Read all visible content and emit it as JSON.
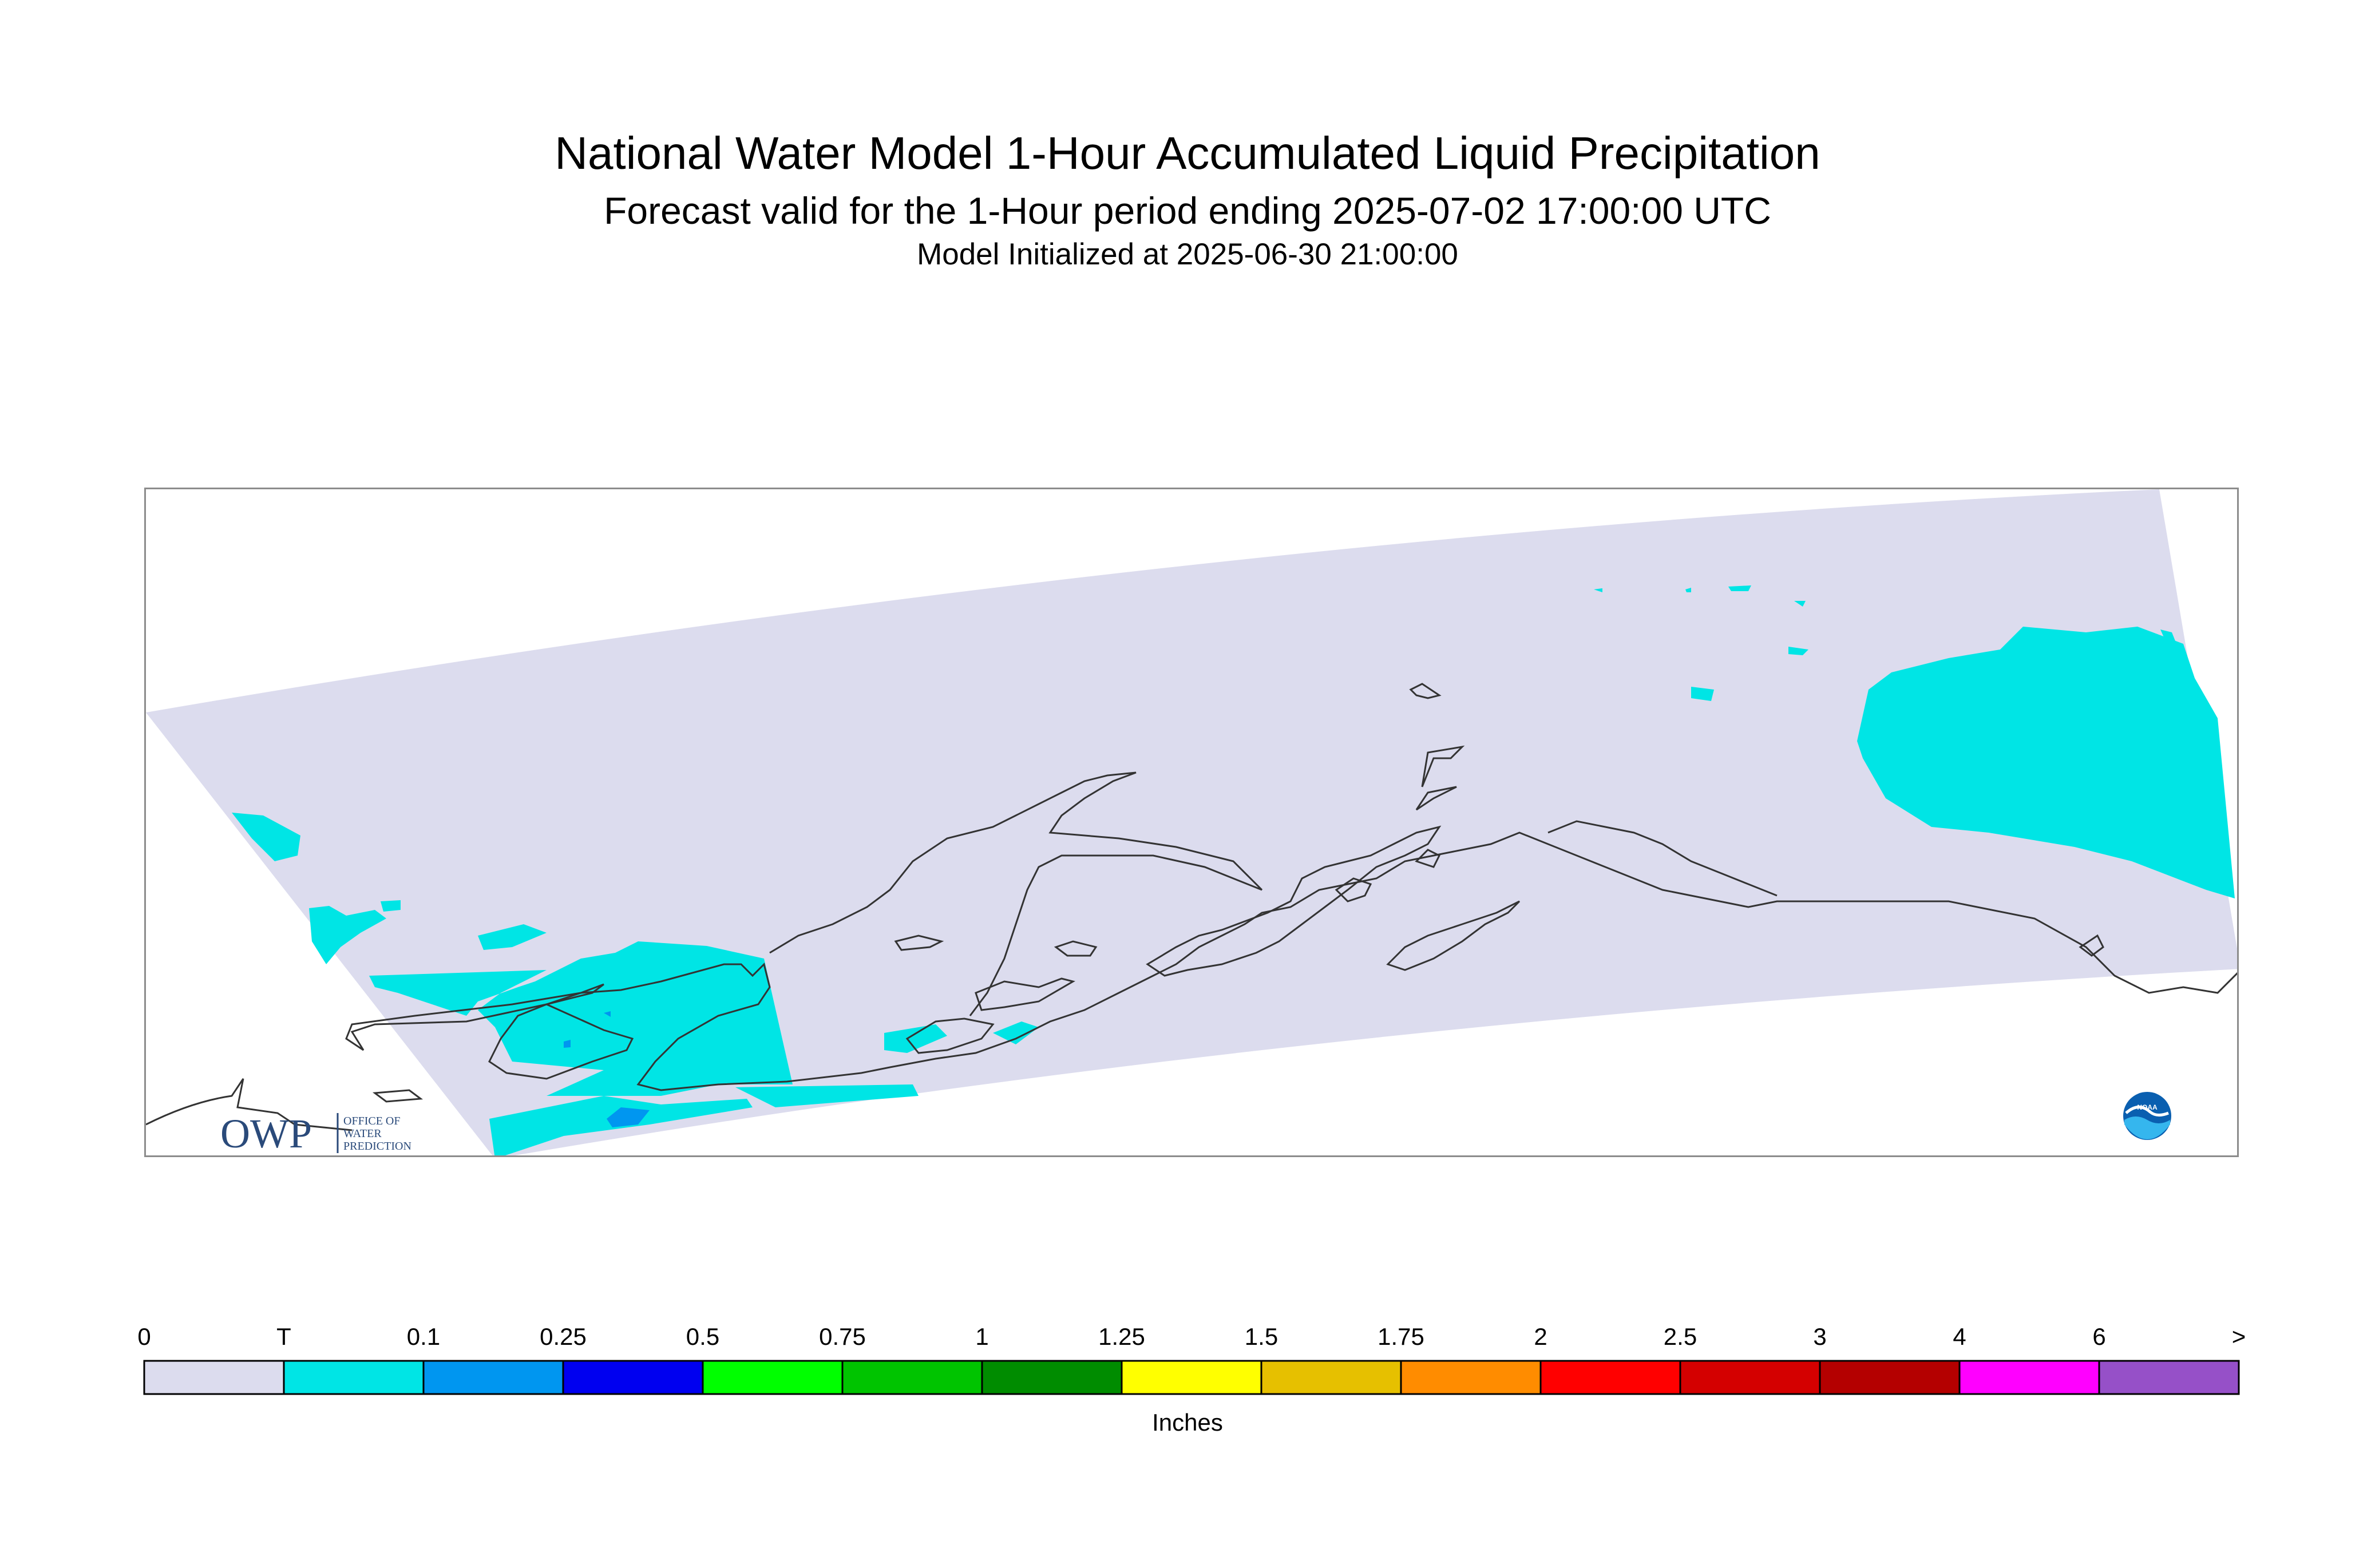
{
  "header": {
    "title": "National Water Model 1-Hour Accumulated Liquid Precipitation",
    "subtitle": "Forecast valid for the 1-Hour period ending 2025-07-02 17:00:00 UTC",
    "init": "Model Initialized at 2025-06-30 21:00:00"
  },
  "map": {
    "region": "Alaska",
    "domain_fill_color": "#dcdcee",
    "background_color": "#ffffff",
    "coastline_color": "#333333",
    "owp_logo": {
      "text": "OWP",
      "line1": "OFFICE OF",
      "line2": "WATER",
      "line3": "PREDICTION",
      "color": "#2a4a7a"
    },
    "noaa_logo": {
      "text": "NOAA",
      "icon": "noaa-emblem-icon"
    }
  },
  "legend": {
    "units": "Inches",
    "tick_labels": [
      "0",
      "T",
      "0.1",
      "0.25",
      "0.5",
      "0.75",
      "1",
      "1.25",
      "1.5",
      "1.75",
      "2",
      "2.5",
      "3",
      "4",
      "6",
      ">"
    ],
    "colors": [
      "#dcdcee",
      "#00e5e5",
      "#0096f0",
      "#0000f0",
      "#00ff00",
      "#00c400",
      "#008c00",
      "#ffff00",
      "#e6c000",
      "#ff8c00",
      "#ff0000",
      "#d40000",
      "#b40000",
      "#ff00ff",
      "#9650c8"
    ]
  }
}
